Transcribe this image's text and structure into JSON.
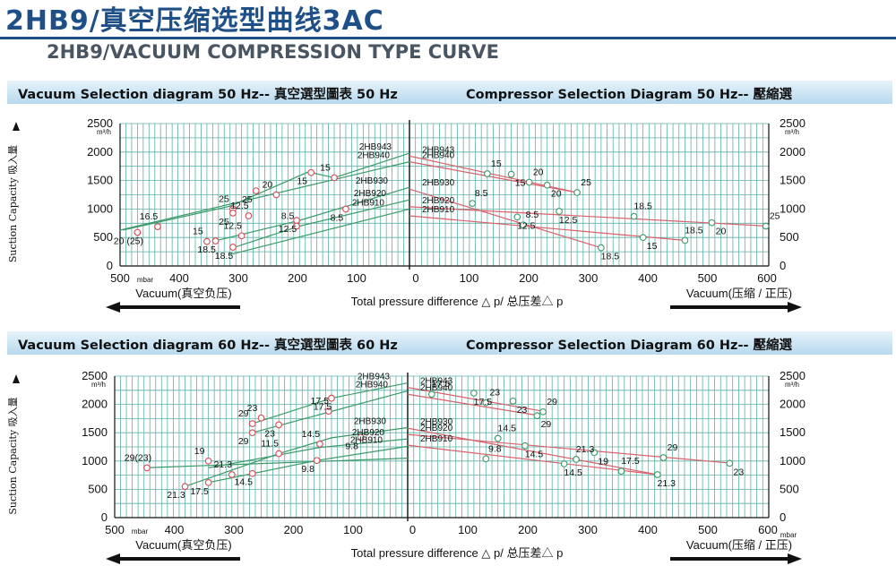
{
  "header": {
    "title_cn": "2HB9/真空压缩选型曲线3AC",
    "title_en": "2HB9/VACUUM COMPRESSION TYPE CURVE"
  },
  "panels": [
    {
      "vac_title": "Vacuum Selection diagram 50 Hz-- 真空選型圖表 50 Hz",
      "comp_title": "Compressor Selection Diagram 50 Hz-- 壓縮選",
      "vac_ticks": [
        "500",
        "400",
        "300",
        "200",
        "100",
        "0"
      ],
      "comp_ticks": [
        "0",
        "100",
        "200",
        "300",
        "400",
        "500",
        "600"
      ],
      "mbar_left": "mbar",
      "mbar_right": "",
      "y_ticks": [
        "0",
        "500",
        "1000",
        "1500",
        "2000",
        "2500"
      ],
      "unit": "m³/h",
      "y_axis_label": "Suction Capacity 吸入量",
      "vacuum_label": "Vacuum(真空负压)",
      "center_label": "Total pressure difference △ p/ 总压差△ p",
      "comp_label": "Vacuum(压缩 / 正压)"
    },
    {
      "vac_title": "Vacuum Selection diagram 60 Hz-- 真空選型圖表 60 Hz",
      "comp_title": "Compressor Selection Diagram 60 Hz-- 壓縮選",
      "vac_ticks": [
        "500",
        "400",
        "300",
        "200",
        "100",
        "0"
      ],
      "comp_ticks": [
        "0",
        "100",
        "200",
        "300",
        "400",
        "500",
        "600"
      ],
      "mbar_left": "mbar",
      "mbar_right": "mbar",
      "y_ticks": [
        "0",
        "500",
        "1000",
        "1500",
        "2000",
        "2500"
      ],
      "unit": "m³/h",
      "y_axis_label": "Suction Capacity 吸入量",
      "vacuum_label": "Vacuum(真空负压)",
      "center_label": "Total pressure difference △ p/ 总压差△ p",
      "comp_label": "Vacuum(压缩 / 正压)"
    }
  ],
  "chart_data": [
    {
      "type": "line",
      "title": "Vacuum Selection diagram 50 Hz-- 真空選型圖表 50 Hz",
      "xlabel": "Vacuum(真空负压)",
      "ylabel": "Suction Capacity 吸入量",
      "unit_x": "mbar",
      "unit_y": "m³/h",
      "xlim": [
        500,
        0
      ],
      "ylim": [
        0,
        2500
      ],
      "series": [
        {
          "name": "2HB943",
          "x": [
            0,
            130,
            175,
            310,
            495
          ],
          "y": [
            1980,
            1550,
            1650,
            1050,
            630
          ],
          "color": "#3a9a6a"
        },
        {
          "name": "2HB940",
          "x": [
            0,
            500
          ],
          "y": [
            1830,
            630
          ],
          "color": "#3a9a6a"
        },
        {
          "name": "2HB930",
          "x": [
            0,
            190,
            340
          ],
          "y": [
            1380,
            800,
            430
          ],
          "color": "#3a9a6a"
        },
        {
          "name": "2HB920",
          "x": [
            0,
            190,
            305
          ],
          "y": [
            1160,
            700,
            320
          ],
          "color": "#3a9a6a"
        },
        {
          "name": "2HB910",
          "x": [
            0,
            310
          ],
          "y": [
            1000,
            200
          ],
          "color": "#3a9a6a"
        }
      ],
      "markers": [
        {
          "x": 435,
          "y": 690,
          "label": "16.5"
        },
        {
          "x": 470,
          "y": 590,
          "label": "20 (25)"
        },
        {
          "x": 350,
          "y": 430,
          "label": "15"
        },
        {
          "x": 335,
          "y": 440,
          "label": "18.5"
        },
        {
          "x": 305,
          "y": 1000,
          "label": "25"
        },
        {
          "x": 305,
          "y": 930,
          "label": "25"
        },
        {
          "x": 290,
          "y": 530,
          "label": "12.5"
        },
        {
          "x": 305,
          "y": 330,
          "label": "18.5"
        },
        {
          "x": 278,
          "y": 880,
          "label": "12.5"
        },
        {
          "x": 265,
          "y": 1320,
          "label": "25"
        },
        {
          "x": 230,
          "y": 1250,
          "label": "20"
        },
        {
          "x": 195,
          "y": 800,
          "label": "12.5"
        },
        {
          "x": 195,
          "y": 700,
          "label": "8.5"
        },
        {
          "x": 170,
          "y": 1640,
          "label": "15"
        },
        {
          "x": 130,
          "y": 1550,
          "label": "15"
        },
        {
          "x": 110,
          "y": 1000,
          "label": "8.5"
        }
      ]
    },
    {
      "type": "line",
      "title": "Compressor Selection Diagram 50 Hz-- 壓縮選",
      "xlabel": "Vacuum(压缩 / 正压)",
      "ylabel": "Suction Capacity 吸入量",
      "unit_x": "mbar",
      "unit_y": "m³/h",
      "xlim": [
        0,
        600
      ],
      "ylim": [
        0,
        2500
      ],
      "series": [
        {
          "name": "2HB943",
          "x": [
            0,
            280
          ],
          "y": [
            1930,
            1290
          ],
          "color": "#d9606a"
        },
        {
          "name": "2HB940",
          "x": [
            0,
            280
          ],
          "y": [
            1830,
            1290
          ],
          "color": "#d9606a"
        },
        {
          "name": "2HB930",
          "x": [
            0,
            320
          ],
          "y": [
            1350,
            320
          ],
          "color": "#d9606a"
        },
        {
          "name": "2HB920",
          "x": [
            0,
            600
          ],
          "y": [
            1040,
            700
          ],
          "color": "#d9606a"
        },
        {
          "name": "2HB910",
          "x": [
            0,
            460
          ],
          "y": [
            880,
            450
          ],
          "color": "#d9606a"
        }
      ],
      "markers": [
        {
          "x": 130,
          "y": 1620,
          "label": "15"
        },
        {
          "x": 170,
          "y": 1610,
          "label": "15"
        },
        {
          "x": 200,
          "y": 1470,
          "label": "20"
        },
        {
          "x": 230,
          "y": 1420,
          "label": "20"
        },
        {
          "x": 280,
          "y": 1290,
          "label": "25"
        },
        {
          "x": 250,
          "y": 960,
          "label": "12.5"
        },
        {
          "x": 105,
          "y": 1100,
          "label": "8.5"
        },
        {
          "x": 180,
          "y": 860,
          "label": "12.5"
        },
        {
          "x": 190,
          "y": 720,
          "label": "8.5"
        },
        {
          "x": 320,
          "y": 320,
          "label": "18.5"
        },
        {
          "x": 375,
          "y": 870,
          "label": "18.5"
        },
        {
          "x": 390,
          "y": 500,
          "label": "15"
        },
        {
          "x": 460,
          "y": 450,
          "label": "18.5"
        },
        {
          "x": 505,
          "y": 760,
          "label": "20"
        },
        {
          "x": 595,
          "y": 700,
          "label": "25"
        }
      ]
    },
    {
      "type": "line",
      "title": "Vacuum Selection diagram 60 Hz-- 真空選型圖表 60 Hz",
      "xlabel": "Vacuum(真空负压)",
      "ylabel": "Suction Capacity 吸入量",
      "unit_x": "mbar",
      "unit_y": "m³/h",
      "xlim": [
        500,
        0
      ],
      "ylim": [
        0,
        2500
      ],
      "series": [
        {
          "name": "2HB943",
          "x": [
            0,
            130,
            265
          ],
          "y": [
            2380,
            2110,
            1660
          ],
          "color": "#3a9a6a"
        },
        {
          "name": "2HB940",
          "x": [
            0,
            265
          ],
          "y": [
            2240,
            1500
          ],
          "color": "#3a9a6a"
        },
        {
          "name": "2HB930",
          "x": [
            0,
            130,
            220,
            380
          ],
          "y": [
            1590,
            1410,
            1130,
            550
          ],
          "color": "#3a9a6a"
        },
        {
          "name": "2HB920",
          "x": [
            0,
            150,
            340
          ],
          "y": [
            1390,
            1240,
            880
          ],
          "color": "#3a9a6a"
        },
        {
          "name": "2HB910",
          "x": [
            0,
            155,
            340
          ],
          "y": [
            1260,
            1010,
            620
          ],
          "color": "#3a9a6a"
        },
        {
          "name": "",
          "x": [
            0,
            450
          ],
          "y": [
            1050,
            880
          ],
          "color": "#3a9a6a"
        }
      ],
      "markers": [
        {
          "x": 445,
          "y": 880,
          "label": "29(23)"
        },
        {
          "x": 380,
          "y": 550,
          "label": "21.3"
        },
        {
          "x": 340,
          "y": 1000,
          "label": "19"
        },
        {
          "x": 340,
          "y": 620,
          "label": "17.5"
        },
        {
          "x": 300,
          "y": 760,
          "label": "21.3"
        },
        {
          "x": 265,
          "y": 780,
          "label": "14.5"
        },
        {
          "x": 265,
          "y": 1660,
          "label": "29"
        },
        {
          "x": 265,
          "y": 1500,
          "label": "29"
        },
        {
          "x": 250,
          "y": 1760,
          "label": "23"
        },
        {
          "x": 220,
          "y": 1640,
          "label": "23"
        },
        {
          "x": 220,
          "y": 1130,
          "label": "11.5"
        },
        {
          "x": 155,
          "y": 1010,
          "label": "9.8"
        },
        {
          "x": 150,
          "y": 1300,
          "label": "14.5"
        },
        {
          "x": 130,
          "y": 2110,
          "label": "17.5"
        },
        {
          "x": 135,
          "y": 1880,
          "label": "17.5"
        },
        {
          "x": 80,
          "y": 1420,
          "label": "9.8"
        }
      ]
    },
    {
      "type": "line",
      "title": "Compressor Selection Diagram 60 Hz-- 壓縮選",
      "xlabel": "Vacuum(压缩 / 正压)",
      "ylabel": "Suction Capacity 吸入量",
      "unit_x": "mbar",
      "unit_y": "m³/h",
      "xlim": [
        0,
        600
      ],
      "ylim": [
        0,
        2500
      ],
      "series": [
        {
          "name": "2HB943",
          "x": [
            0,
            230
          ],
          "y": [
            2300,
            1870
          ],
          "color": "#d9606a"
        },
        {
          "name": "2HB940",
          "x": [
            0,
            220
          ],
          "y": [
            2180,
            1800
          ],
          "color": "#d9606a"
        },
        {
          "name": "2HB930",
          "x": [
            0,
            415
          ],
          "y": [
            1580,
            760
          ],
          "color": "#d9606a"
        },
        {
          "name": "2HB920",
          "x": [
            0,
            540
          ],
          "y": [
            1470,
            960
          ],
          "color": "#d9606a"
        },
        {
          "name": "2HB910",
          "x": [
            0,
            415
          ],
          "y": [
            1280,
            760
          ],
          "color": "#d9606a"
        }
      ],
      "markers": [
        {
          "x": 40,
          "y": 2180,
          "label": "17.5"
        },
        {
          "x": 110,
          "y": 2200,
          "label": "17.5"
        },
        {
          "x": 130,
          "y": 2030,
          "label": "23"
        },
        {
          "x": 175,
          "y": 2060,
          "label": "23"
        },
        {
          "x": 225,
          "y": 1870,
          "label": "29"
        },
        {
          "x": 215,
          "y": 1800,
          "label": "29"
        },
        {
          "x": 150,
          "y": 1400,
          "label": "14.5"
        },
        {
          "x": 195,
          "y": 1270,
          "label": "14.5"
        },
        {
          "x": 130,
          "y": 1040,
          "label": "9.8"
        },
        {
          "x": 260,
          "y": 950,
          "label": "14.5"
        },
        {
          "x": 280,
          "y": 1030,
          "label": "21.3"
        },
        {
          "x": 310,
          "y": 1150,
          "label": "19"
        },
        {
          "x": 355,
          "y": 820,
          "label": "17.5"
        },
        {
          "x": 415,
          "y": 760,
          "label": "21.3"
        },
        {
          "x": 425,
          "y": 1060,
          "label": "29"
        },
        {
          "x": 535,
          "y": 960,
          "label": "23"
        }
      ]
    }
  ]
}
